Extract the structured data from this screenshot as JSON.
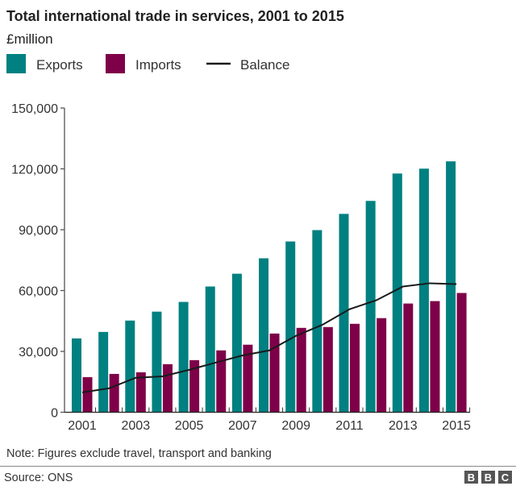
{
  "chart_data": {
    "type": "bar",
    "title": "Total international trade in services, 2001 to 2015",
    "subtitle": "£million",
    "categories": [
      2001,
      2002,
      2003,
      2004,
      2005,
      2006,
      2007,
      2008,
      2009,
      2010,
      2011,
      2012,
      2013,
      2014,
      2015
    ],
    "x_tick_labels": [
      "2001",
      "2003",
      "2005",
      "2007",
      "2009",
      "2011",
      "2013",
      "2015"
    ],
    "y_ticks": [
      0,
      30000,
      60000,
      90000,
      120000,
      150000
    ],
    "y_tick_labels": [
      "0",
      "30,000",
      "60,000",
      "90,000",
      "120,000",
      "150,000"
    ],
    "ylim": [
      0,
      150000
    ],
    "grid": false,
    "legend_placement": "top-left",
    "series": [
      {
        "name": "Exports",
        "type": "bar",
        "color": "#008080",
        "values": [
          36400,
          39600,
          45200,
          49600,
          54400,
          62000,
          68300,
          75900,
          84200,
          89800,
          97800,
          104200,
          117700,
          120100,
          123700
        ]
      },
      {
        "name": "Imports",
        "type": "bar",
        "color": "#7e0048",
        "values": [
          17300,
          18900,
          19700,
          23700,
          25700,
          30500,
          33300,
          38800,
          41600,
          42000,
          43600,
          46400,
          53600,
          54800,
          58800
        ]
      },
      {
        "name": "Balance",
        "type": "line",
        "color": "#1a1a1a",
        "values": [
          9800,
          11800,
          17000,
          17700,
          20900,
          24500,
          28000,
          30500,
          37700,
          43200,
          50800,
          55200,
          62000,
          63600,
          63200
        ]
      }
    ],
    "note": "Note: Figures exclude travel, transport and banking",
    "source": "Source: ONS"
  },
  "branding": {
    "logo": "BBC"
  }
}
